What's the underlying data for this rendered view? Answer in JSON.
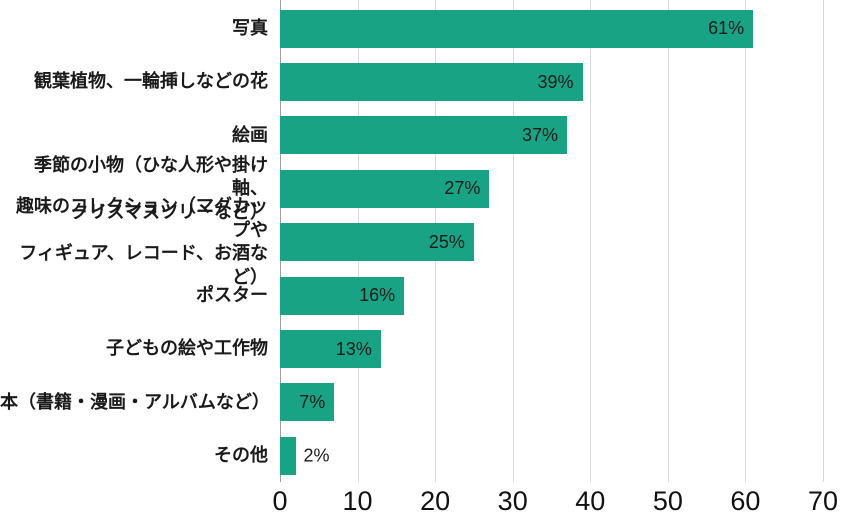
{
  "chart_data": {
    "type": "bar",
    "orientation": "horizontal",
    "title": "",
    "xlabel": "",
    "ylabel": "",
    "legend": "none",
    "grid": "vertical-only",
    "xlim": [
      0,
      70
    ],
    "x_ticks": [
      0,
      10,
      20,
      30,
      40,
      50,
      60,
      70
    ],
    "categories": [
      "写真",
      "観葉植物、一輪挿しなどの花",
      "絵画",
      "季節の小物（ひな人形や掛け軸、\nクリスマスツリーなど）",
      "趣味のコレクション（マグカップや\nフィギュア、レコード、お酒など）",
      "ポスター",
      "子どもの絵や工作物",
      "本（書籍・漫画・アルバムなど）",
      "その他"
    ],
    "values": [
      61,
      39,
      37,
      27,
      25,
      16,
      13,
      7,
      2
    ],
    "value_labels": [
      "61%",
      "39%",
      "37%",
      "27%",
      "25%",
      "16%",
      "13%",
      "7%",
      "2%"
    ],
    "colors": {
      "bar": "#17a384",
      "gridline": "#d9d9d9",
      "axis_line": "#9e9e9e",
      "text": "#1a1a1a"
    }
  }
}
